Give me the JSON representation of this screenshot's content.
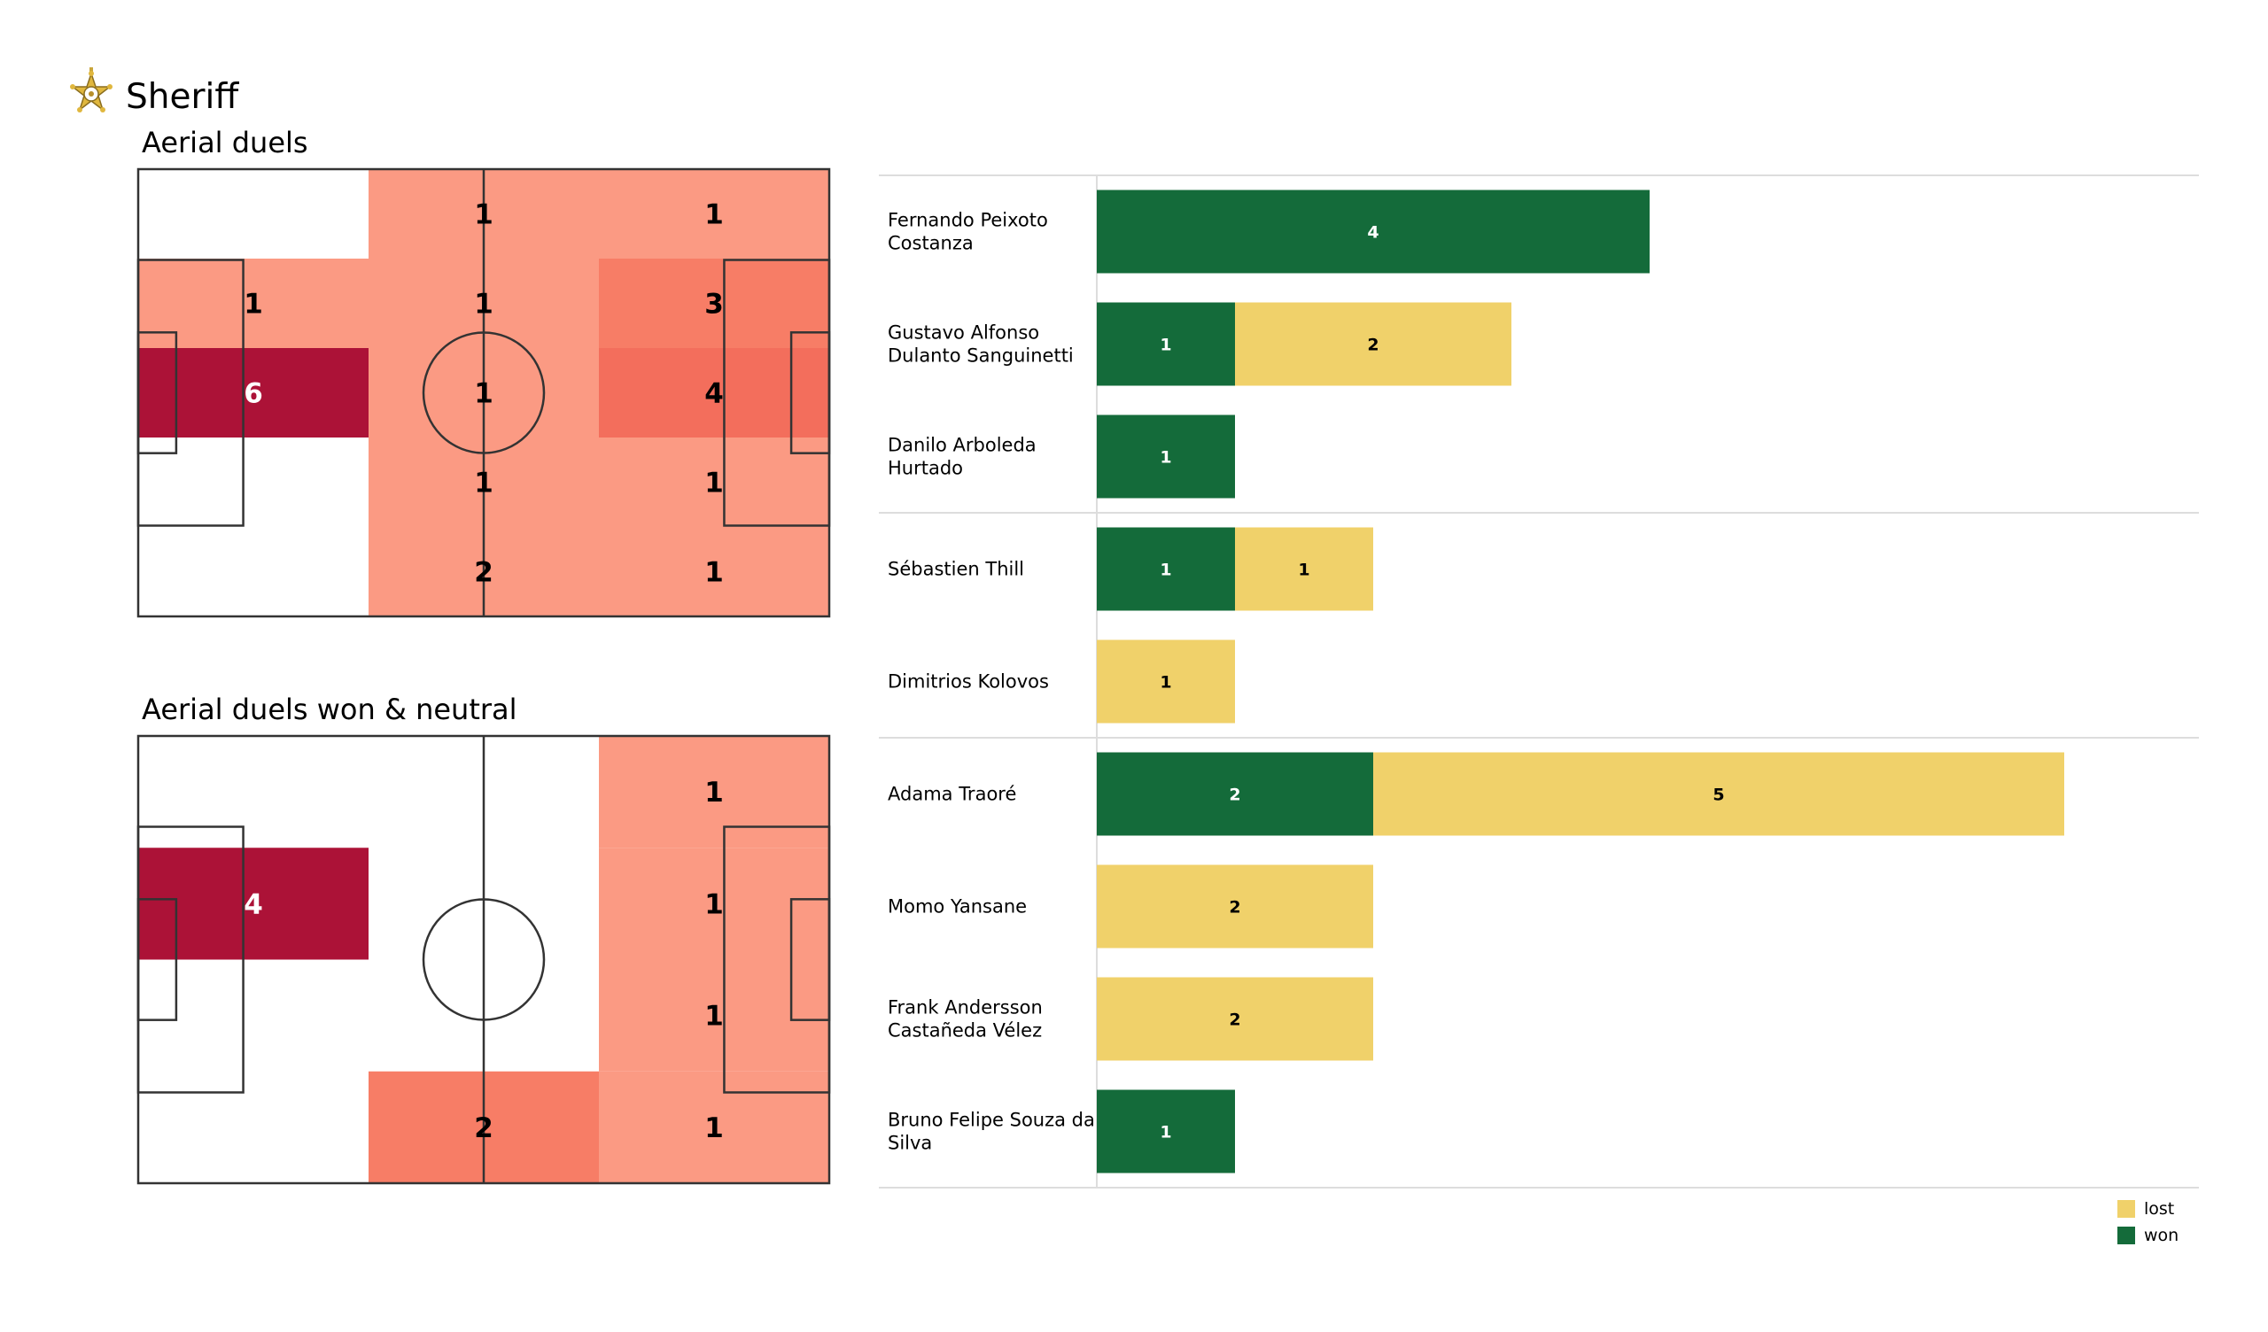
{
  "header": {
    "team_name": "Sheriff",
    "logo_icon": "sheriff-star-crest-icon"
  },
  "colors": {
    "won": "#146b3a",
    "lost": "#f0d16a",
    "pitch_lines": "#333333",
    "heat_scale": [
      "#ffbfb1",
      "#fb9a83",
      "#f77d66",
      "#f36e5c",
      "#e7474a",
      "#ac1237"
    ]
  },
  "chart_data": [
    {
      "type": "heatmap",
      "title": "Aerial duels",
      "cells": [
        [
          null,
          1,
          1
        ],
        [
          1,
          1,
          3
        ],
        [
          6,
          1,
          4
        ],
        [
          null,
          1,
          1
        ],
        [
          null,
          2,
          1
        ]
      ]
    },
    {
      "type": "heatmap",
      "title": "Aerial duels won & neutral",
      "cells": [
        [
          null,
          null,
          1
        ],
        [
          4,
          null,
          1
        ],
        [
          null,
          null,
          1
        ],
        [
          null,
          2,
          1
        ]
      ]
    },
    {
      "type": "bar",
      "orientation": "horizontal",
      "stacked": true,
      "categories": [
        "Fernando Peixoto Costanza",
        "Gustavo Alfonso Dulanto Sanguinetti",
        "Danilo Arboleda Hurtado",
        "Sébastien Thill",
        "Dimitrios Kolovos",
        "Adama Traoré",
        "Momo Yansane",
        "Frank Andersson Castañeda Vélez",
        "Bruno Felipe Souza da Silva"
      ],
      "group_breaks_after": [
        2,
        4
      ],
      "series": [
        {
          "name": "won",
          "values": [
            4,
            1,
            1,
            1,
            0,
            2,
            0,
            0,
            1
          ]
        },
        {
          "name": "lost",
          "values": [
            0,
            2,
            0,
            1,
            1,
            5,
            2,
            2,
            0
          ]
        }
      ],
      "xlim": [
        0,
        8
      ],
      "legend": {
        "position": "bottom-right",
        "items": [
          "lost",
          "won"
        ]
      }
    }
  ]
}
